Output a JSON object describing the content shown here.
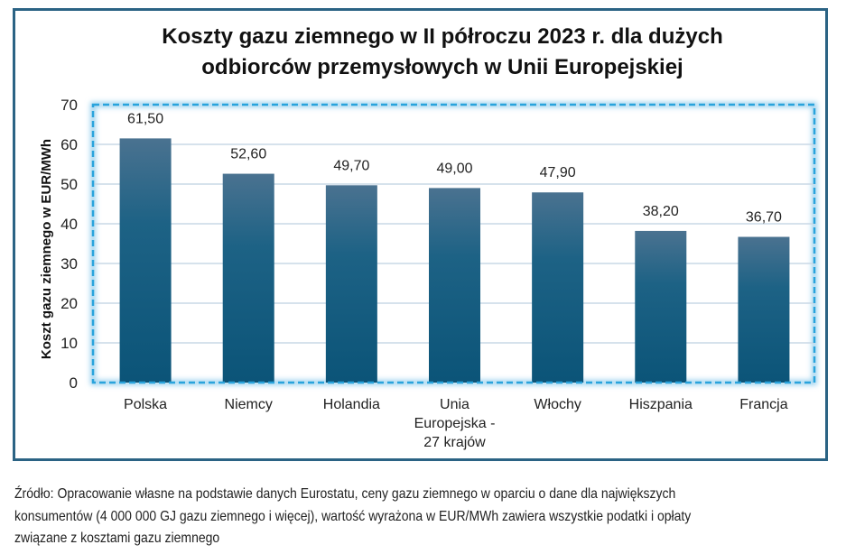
{
  "chart_data": {
    "type": "bar",
    "title": "Koszty gazu ziemnego w II półroczu 2023 r. dla dużych odbiorców przemysłowych w Unii Europejskiej",
    "title_lines": [
      "Koszty gazu ziemnego w II półroczu 2023 r. dla dużych",
      "odbiorców przemysłowych w Unii Europejskiej"
    ],
    "xlabel": "",
    "ylabel": "Koszt gazu ziemnego w EUR/MWh",
    "ylim": [
      0,
      70
    ],
    "yticks": [
      0,
      10,
      20,
      30,
      40,
      50,
      60,
      70
    ],
    "grid": true,
    "categories": [
      "Polska",
      "Niemcy",
      "Holandia",
      "Unia Europejska - 27 krajów",
      "Włochy",
      "Hiszpania",
      "Francja"
    ],
    "category_lines": [
      [
        "Polska"
      ],
      [
        "Niemcy"
      ],
      [
        "Holandia"
      ],
      [
        "Unia",
        "Europejska -",
        "27 krajów"
      ],
      [
        "Włochy"
      ],
      [
        "Hiszpania"
      ],
      [
        "Francja"
      ]
    ],
    "values": [
      61.5,
      52.6,
      49.7,
      49.0,
      47.9,
      38.2,
      36.7
    ],
    "data_labels": [
      "61,50",
      "52,60",
      "49,70",
      "49,00",
      "47,90",
      "38,20",
      "36,70"
    ],
    "colors": {
      "bar_top": "#4a7290",
      "bar_bottom": "#0b5478",
      "grid": "#c9d8e6",
      "frame": "#2b6384",
      "plot_border": "#29a3dc"
    }
  },
  "footnote": {
    "lines": [
      "Źródło: Opracowanie własne na podstawie danych Eurostatu, ceny gazu ziemnego w oparciu o dane dla największych",
      "konsumentów (4 000 000 GJ gazu ziemnego i więcej), wartość wyrażona w EUR/MWh zawiera wszystkie podatki i opłaty",
      "związane z kosztami gazu ziemnego"
    ]
  }
}
